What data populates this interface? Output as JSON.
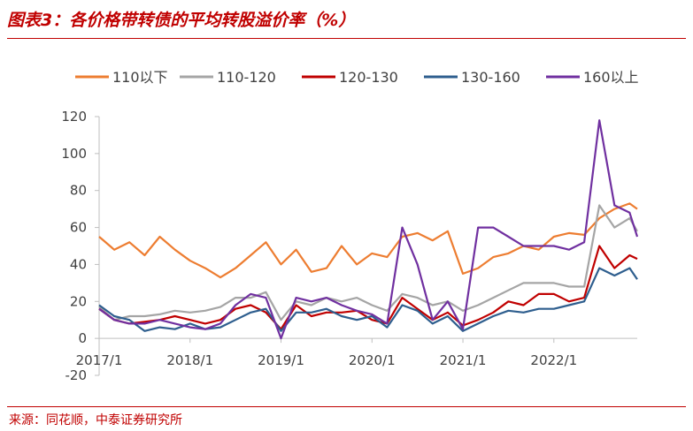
{
  "header": {
    "title": "图表3：各价格带转债的平均转股溢价率（%）"
  },
  "footer": {
    "source": "来源：同花顺，中泰证券研究所"
  },
  "chart_data": {
    "type": "line",
    "title": "图表3：各价格带转债的平均转股溢价率（%）",
    "xlabel": "",
    "ylabel": "",
    "ylim": [
      -20,
      120
    ],
    "xlim": [
      "2017/1",
      "2022/12"
    ],
    "grid": false,
    "legend_position": "top",
    "y_ticks": [
      "-20",
      "0",
      "20",
      "40",
      "60",
      "80",
      "100",
      "120"
    ],
    "x_ticks": [
      "2017/1",
      "2018/1",
      "2019/1",
      "2020/1",
      "2021/1",
      "2022/1"
    ],
    "x": [
      "2017/1",
      "2017/3",
      "2017/5",
      "2017/7",
      "2017/9",
      "2017/11",
      "2018/1",
      "2018/3",
      "2018/5",
      "2018/7",
      "2018/9",
      "2018/11",
      "2019/1",
      "2019/3",
      "2019/5",
      "2019/7",
      "2019/9",
      "2019/11",
      "2020/1",
      "2020/3",
      "2020/5",
      "2020/7",
      "2020/9",
      "2020/11",
      "2021/1",
      "2021/3",
      "2021/5",
      "2021/7",
      "2021/9",
      "2021/11",
      "2022/1",
      "2022/3",
      "2022/5",
      "2022/7",
      "2022/9",
      "2022/11",
      "2022/12"
    ],
    "series": [
      {
        "name": "110以下",
        "color": "#ed7d31",
        "values": [
          55,
          48,
          52,
          45,
          55,
          48,
          42,
          38,
          33,
          38,
          45,
          52,
          40,
          48,
          36,
          38,
          50,
          40,
          46,
          44,
          55,
          57,
          53,
          58,
          35,
          38,
          44,
          46,
          50,
          48,
          55,
          57,
          56,
          65,
          70,
          73,
          70
        ]
      },
      {
        "name": "110-120",
        "color": "#a5a5a5",
        "values": [
          17,
          10,
          12,
          12,
          13,
          15,
          14,
          15,
          17,
          22,
          22,
          25,
          10,
          20,
          18,
          22,
          20,
          22,
          18,
          15,
          24,
          22,
          18,
          20,
          15,
          18,
          22,
          26,
          30,
          30,
          30,
          28,
          28,
          72,
          60,
          65,
          58
        ]
      },
      {
        "name": "120-130",
        "color": "#c00000",
        "values": [
          16,
          10,
          8,
          9,
          10,
          12,
          10,
          8,
          10,
          16,
          18,
          14,
          5,
          18,
          12,
          14,
          14,
          15,
          10,
          8,
          22,
          16,
          10,
          14,
          7,
          10,
          14,
          20,
          18,
          24,
          24,
          20,
          22,
          50,
          38,
          45,
          43
        ]
      },
      {
        "name": "130-160",
        "color": "#2e5e8e",
        "values": [
          18,
          12,
          10,
          4,
          6,
          5,
          8,
          5,
          6,
          10,
          14,
          16,
          4,
          14,
          14,
          16,
          12,
          10,
          12,
          6,
          18,
          15,
          8,
          12,
          4,
          8,
          12,
          15,
          14,
          16,
          16,
          18,
          20,
          38,
          34,
          38,
          32
        ]
      },
      {
        "name": "160以上",
        "color": "#7030a0",
        "values": [
          16,
          10,
          8,
          8,
          10,
          8,
          6,
          5,
          8,
          18,
          24,
          22,
          0,
          22,
          20,
          22,
          18,
          15,
          13,
          8,
          60,
          40,
          10,
          20,
          5,
          60,
          60,
          55,
          50,
          50,
          50,
          48,
          52,
          118,
          72,
          68,
          55
        ]
      }
    ]
  }
}
